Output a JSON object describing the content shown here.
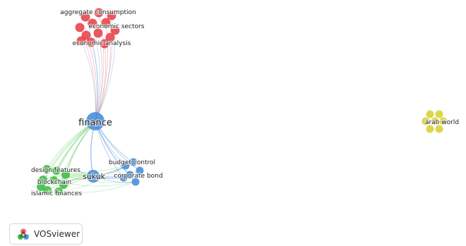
{
  "network": {
    "colors": {
      "red": "#e8464e",
      "blue": "#4a8fd9",
      "green": "#3fbf45",
      "yellow": "#d8d23a"
    },
    "labels": {
      "aggregate_consumption": "aggregate consumption",
      "economic_sectors": "economic sectors",
      "economic_analysis": "economic analysis",
      "finance": "finance",
      "sukuk": "sukuk",
      "budget_control": "budget control",
      "corporate_bond": "corporate bond",
      "design_features": "design features",
      "blockchain": "blockchain",
      "islamic_finances": "islamic finances",
      "arab_world": "arab world"
    }
  },
  "brand": {
    "name": "VOSviewer",
    "icon": "vosviewer-logo-icon"
  }
}
